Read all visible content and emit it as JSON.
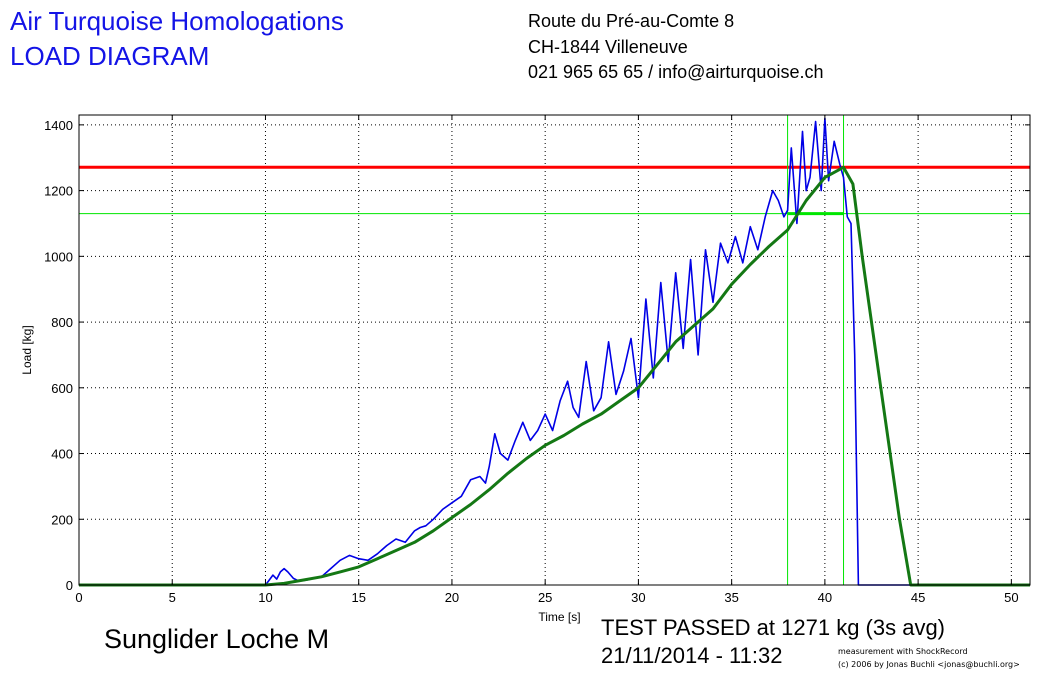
{
  "header": {
    "org_line1": "Air Turquoise Homologations",
    "org_line2": "LOAD DIAGRAM",
    "address_line1": "Route du Pré-au-Comte 8",
    "address_line2": "CH-1844 Villeneuve",
    "address_line3": "021 965 65 65 / info@airturquoise.ch"
  },
  "footer": {
    "glider": "Sunglider Loche M",
    "result_line1": "TEST PASSED at 1271 kg (3s avg)",
    "result_line2": "21/11/2014 - 11:32",
    "credit_line1": "measurement with ShockRecord",
    "credit_line2": "(c) 2006 by Jonas Buchli <jonas@buchli.org>"
  },
  "colors": {
    "raw": "#0000e6",
    "avg": "#147814",
    "limit": "#ff0000",
    "window": "#00e600"
  },
  "chart_data": {
    "type": "line",
    "xlabel": "Time [s]",
    "ylabel": "Load [kg]",
    "xlim": [
      0,
      51
    ],
    "ylim": [
      0,
      1430
    ],
    "xticks": [
      0,
      5,
      10,
      15,
      20,
      25,
      30,
      35,
      40,
      45,
      50
    ],
    "yticks": [
      0,
      200,
      400,
      600,
      800,
      1000,
      1200,
      1400
    ],
    "grid": true,
    "reference_lines": [
      {
        "axis": "y",
        "value": 1271,
        "color": "red"
      },
      {
        "axis": "y",
        "value": 1130,
        "color": "green"
      },
      {
        "axis": "x",
        "value": 38,
        "color": "green"
      },
      {
        "axis": "x",
        "value": 41,
        "color": "green"
      }
    ],
    "averaging_window": {
      "x": [
        38,
        41
      ],
      "y": 1130
    },
    "series": [
      {
        "color": "blue",
        "x": [
          0,
          10,
          10.2,
          10.4,
          10.6,
          10.8,
          11.0,
          11.2,
          11.5,
          11.8,
          12.2,
          12.6,
          13.0,
          13.5,
          14.0,
          14.5,
          15.0,
          15.5,
          16.0,
          16.5,
          17.0,
          17.5,
          18.0,
          18.3,
          18.6,
          19.0,
          19.5,
          20.0,
          20.5,
          21.0,
          21.5,
          21.8,
          22.0,
          22.3,
          22.6,
          23.0,
          23.4,
          23.8,
          24.2,
          24.6,
          25.0,
          25.4,
          25.8,
          26.2,
          26.5,
          26.8,
          27.2,
          27.6,
          28.0,
          28.4,
          28.8,
          29.2,
          29.6,
          30.0,
          30.4,
          30.8,
          31.2,
          31.6,
          32.0,
          32.4,
          32.8,
          33.2,
          33.6,
          34.0,
          34.4,
          34.8,
          35.2,
          35.6,
          36.0,
          36.4,
          36.8,
          37.2,
          37.5,
          37.8,
          38.0,
          38.2,
          38.5,
          38.8,
          39.0,
          39.2,
          39.5,
          39.8,
          40.0,
          40.2,
          40.5,
          40.8,
          41.0,
          41.2,
          41.4,
          41.6,
          41.8,
          42.0,
          44.5,
          51
        ],
        "y": [
          0,
          0,
          15,
          30,
          18,
          40,
          50,
          40,
          20,
          12,
          15,
          20,
          25,
          50,
          75,
          90,
          80,
          75,
          95,
          120,
          140,
          130,
          165,
          175,
          180,
          200,
          230,
          250,
          270,
          320,
          330,
          310,
          360,
          460,
          400,
          380,
          440,
          495,
          440,
          470,
          520,
          470,
          560,
          620,
          540,
          510,
          680,
          530,
          570,
          740,
          580,
          650,
          750,
          570,
          870,
          630,
          920,
          680,
          950,
          720,
          990,
          700,
          1020,
          860,
          1040,
          980,
          1060,
          980,
          1090,
          1020,
          1120,
          1200,
          1170,
          1120,
          1140,
          1330,
          1100,
          1380,
          1200,
          1240,
          1410,
          1200,
          1420,
          1230,
          1350,
          1280,
          1240,
          1120,
          1100,
          700,
          0,
          0,
          0,
          0
        ]
      },
      {
        "color": "green",
        "x": [
          0,
          10.0,
          11.0,
          12.0,
          13.0,
          14.0,
          15.0,
          16.0,
          17.0,
          18.0,
          19.0,
          20.0,
          21.0,
          22.0,
          23.0,
          24.0,
          25.0,
          26.0,
          27.0,
          28.0,
          29.0,
          30.0,
          31.0,
          32.0,
          33.0,
          34.0,
          35.0,
          36.0,
          37.0,
          38.0,
          39.0,
          40.0,
          41.0,
          41.5,
          42.0,
          43.0,
          44.0,
          44.6,
          51
        ],
        "y": [
          0,
          0,
          5,
          15,
          25,
          40,
          55,
          80,
          105,
          130,
          165,
          205,
          245,
          290,
          340,
          385,
          425,
          455,
          490,
          520,
          560,
          600,
          670,
          740,
          790,
          840,
          915,
          975,
          1030,
          1080,
          1170,
          1240,
          1271,
          1220,
          1000,
          600,
          200,
          0,
          0
        ]
      }
    ]
  }
}
